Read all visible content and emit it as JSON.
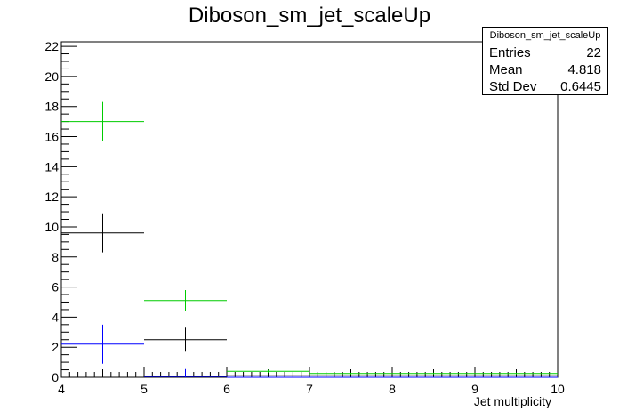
{
  "chart_data": {
    "type": "scatter",
    "title": "Diboson_sm_jet_scaleUp",
    "xlabel": "Jet multiplicity",
    "ylabel": "",
    "xlim": [
      4,
      10
    ],
    "ylim": [
      0,
      22.3
    ],
    "x_ticks": [
      4,
      5,
      6,
      7,
      8,
      9,
      10
    ],
    "y_ticks": [
      0,
      2,
      4,
      6,
      8,
      10,
      12,
      14,
      16,
      18,
      20,
      22
    ],
    "bin_edges": [
      4,
      5,
      6,
      7,
      8,
      9,
      10
    ],
    "series": [
      {
        "color": "#00cc00",
        "values": [
          17.0,
          5.1,
          0.4,
          0.25,
          0.25,
          0.25
        ],
        "errors": [
          1.3,
          0.7,
          0.1,
          0.05,
          0.05,
          0.05
        ]
      },
      {
        "color": "#000000",
        "values": [
          9.6,
          2.5,
          0.1,
          0.1,
          0.1,
          0.1
        ],
        "errors": [
          1.3,
          0.8,
          0.05,
          0.05,
          0.05,
          0.05
        ]
      },
      {
        "color": "#0000ff",
        "values": [
          2.2,
          0.05,
          0.0,
          0.0,
          0.0,
          0.0
        ],
        "errors": [
          1.3,
          0.5,
          0.0,
          0.0,
          0.0,
          0.0
        ]
      }
    ],
    "grid": false,
    "legend": "none"
  },
  "stats_box": {
    "title": "Diboson_sm_jet_scaleUp",
    "entries_label": "Entries",
    "entries_value": "22",
    "mean_label": "Mean",
    "mean_value": "4.818",
    "stddev_label": "Std Dev",
    "stddev_value": "0.6445"
  }
}
